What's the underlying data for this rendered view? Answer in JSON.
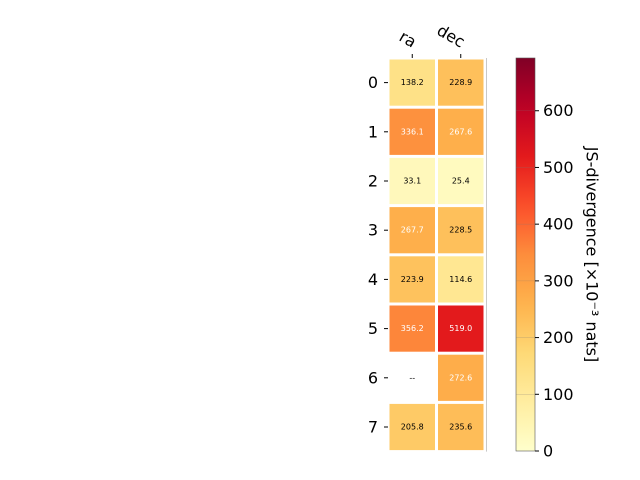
{
  "chart_data": {
    "type": "heatmap",
    "columns": [
      "ra",
      "dec"
    ],
    "rows": [
      "0",
      "1",
      "2",
      "3",
      "4",
      "5",
      "6",
      "7"
    ],
    "values": [
      [
        138.2,
        228.9
      ],
      [
        336.1,
        267.6
      ],
      [
        33.1,
        25.4
      ],
      [
        267.7,
        228.5
      ],
      [
        223.9,
        114.6
      ],
      [
        356.2,
        519.0
      ],
      [
        null,
        272.6
      ],
      [
        205.8,
        235.6
      ]
    ],
    "labels": [
      [
        "138.2",
        "228.9"
      ],
      [
        "336.1",
        "267.6"
      ],
      [
        "33.1",
        "25.4"
      ],
      [
        "267.7",
        "228.5"
      ],
      [
        "223.9",
        "114.6"
      ],
      [
        "356.2",
        "519.0"
      ],
      [
        "--",
        "272.6"
      ],
      [
        "205.8",
        "235.6"
      ]
    ],
    "colormap": "YlOrRd",
    "colorbar": {
      "label": "JS-divergence [×10⁻³ nats]",
      "range": [
        0,
        693
      ],
      "ticks": [
        0,
        100,
        200,
        300,
        400,
        500,
        600
      ],
      "tick_labels": [
        "0",
        "100",
        "200",
        "300",
        "400",
        "500",
        "600"
      ]
    },
    "legend": "none",
    "grid": false
  }
}
